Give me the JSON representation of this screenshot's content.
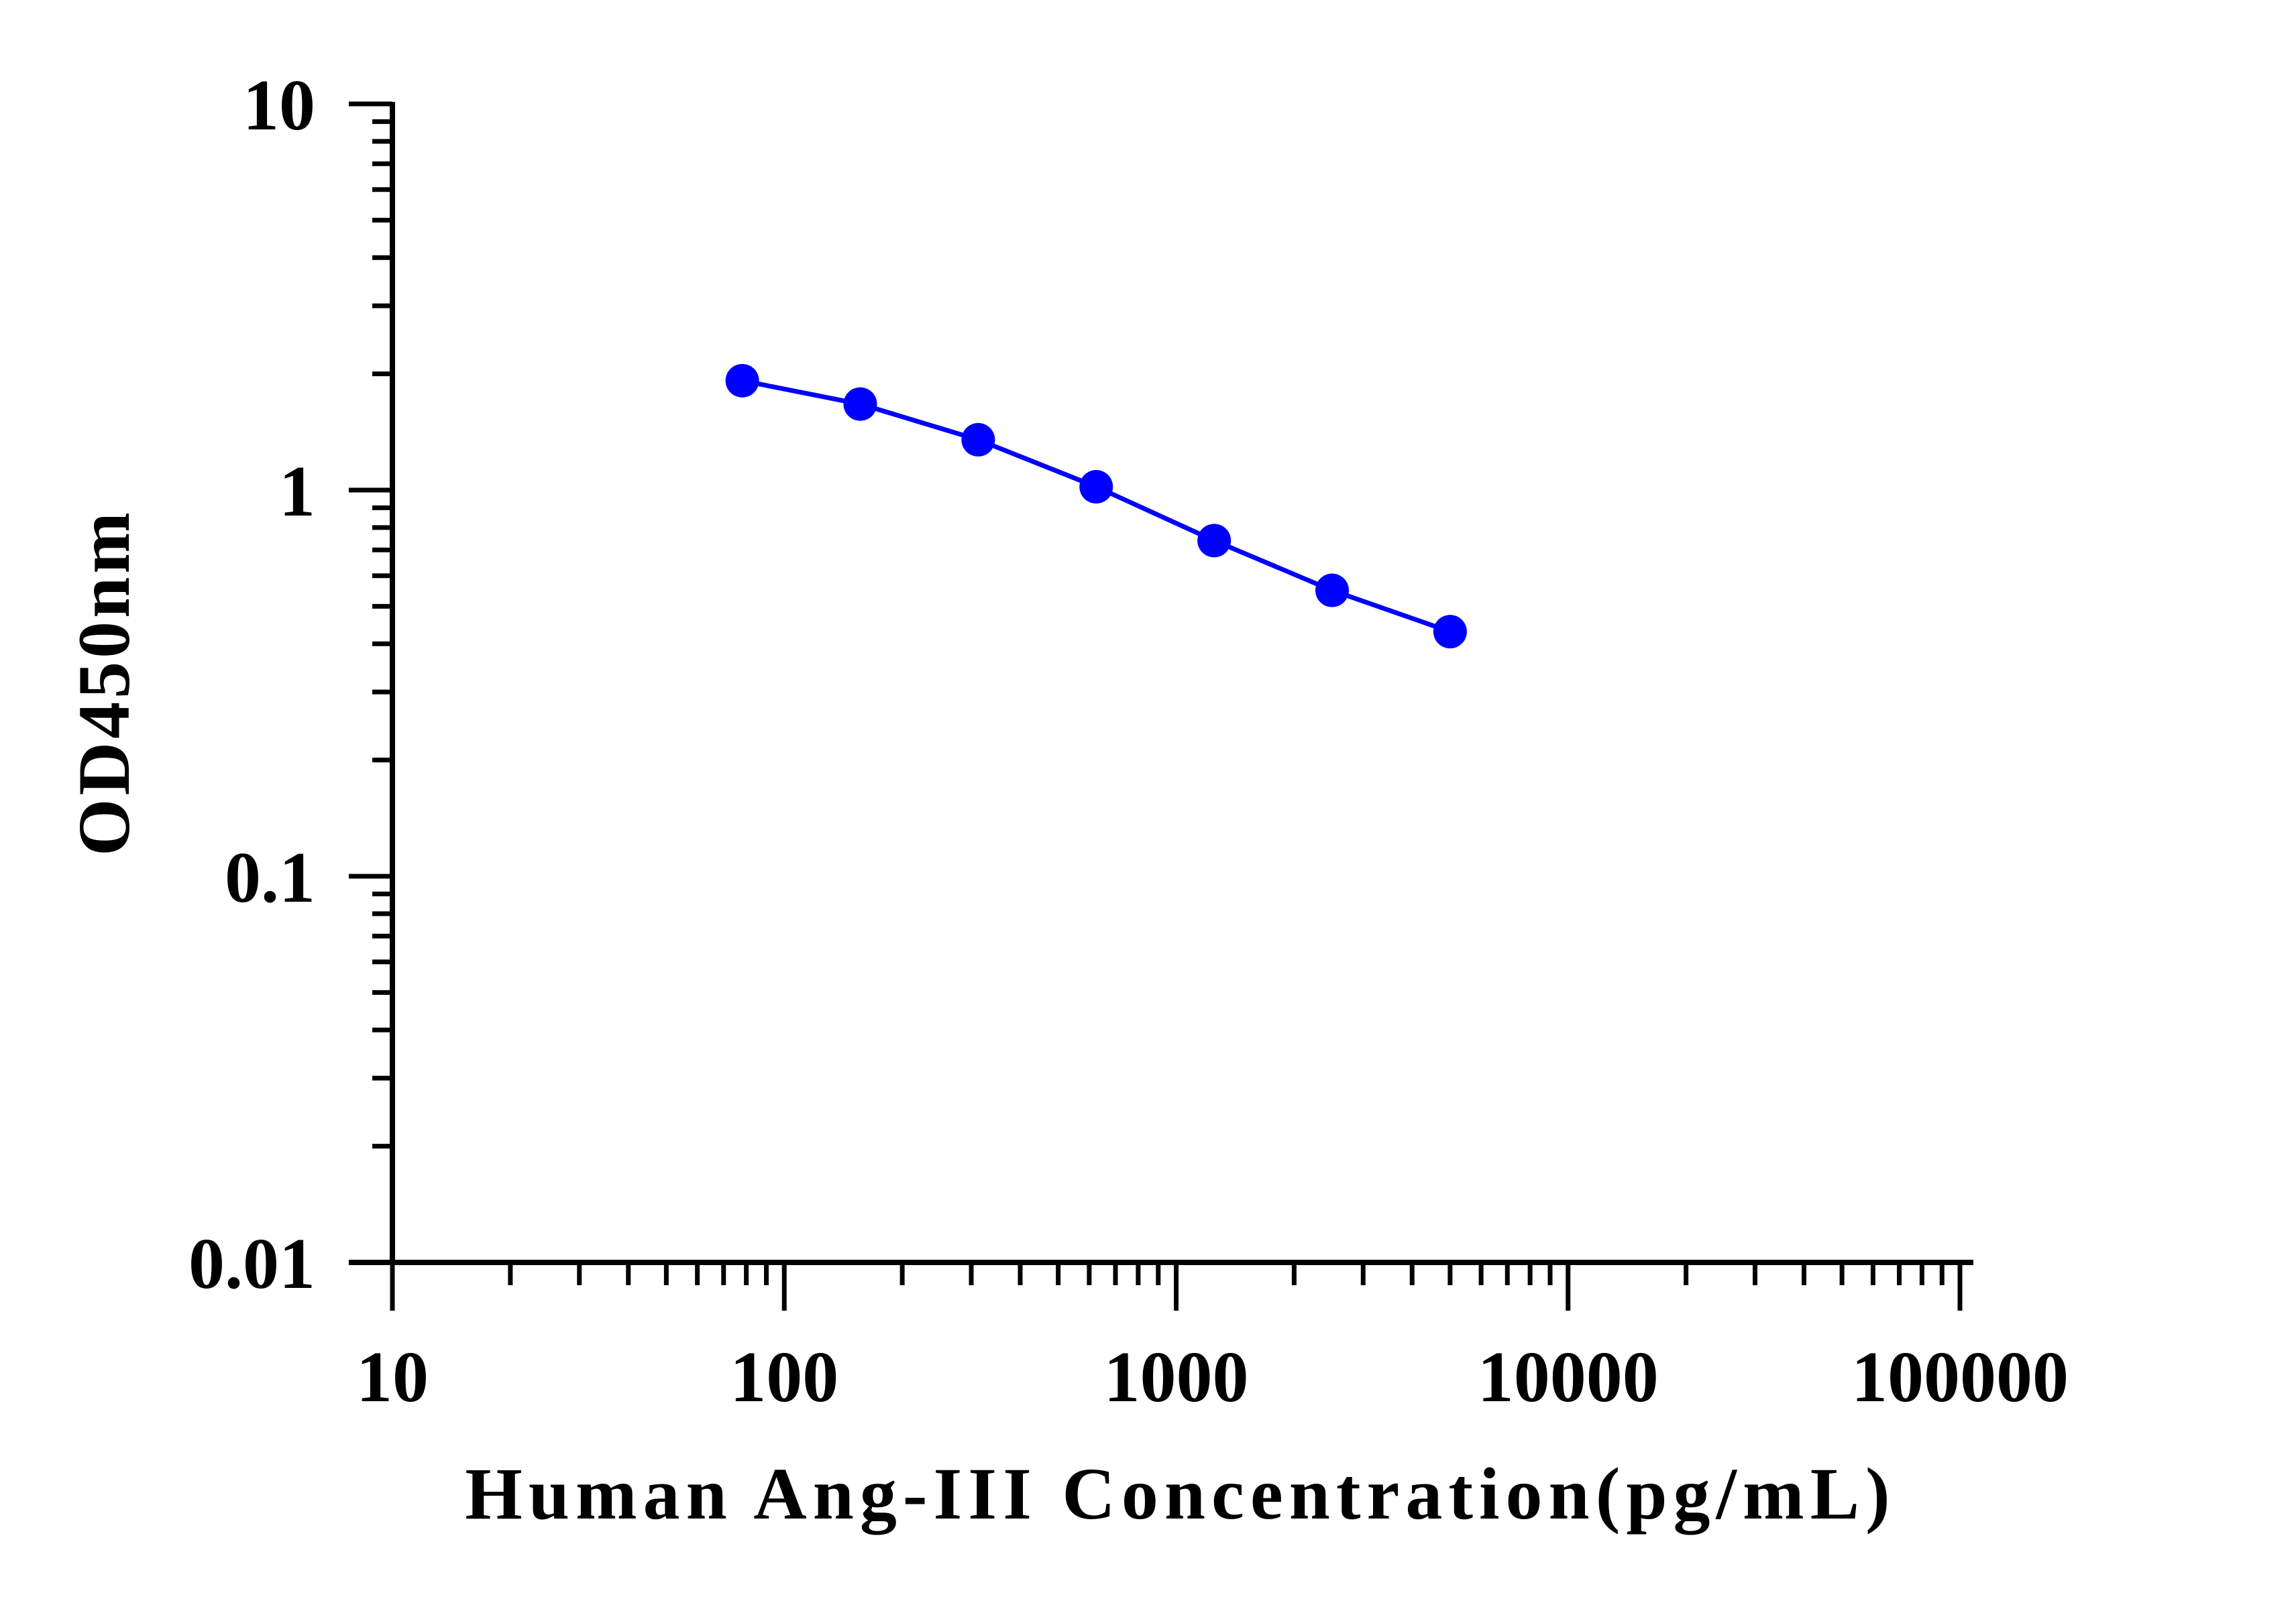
{
  "chart_data": {
    "type": "line",
    "title": "",
    "xlabel": "Human Ang-III Concentration(pg/mL)",
    "ylabel": "OD450nm",
    "x_scale": "log",
    "y_scale": "log",
    "xlim": [
      10,
      100000
    ],
    "ylim": [
      0.01,
      10
    ],
    "x_ticks": [
      10,
      100,
      1000,
      10000,
      100000
    ],
    "x_tick_labels": [
      "10",
      "100",
      "1000",
      "10000",
      "100000"
    ],
    "y_ticks": [
      0.01,
      0.1,
      1,
      10
    ],
    "y_tick_labels": [
      "0.01",
      "0.1",
      "1",
      "10"
    ],
    "grid": false,
    "legend": "none",
    "series": [
      {
        "color": "#0000ff",
        "x": [
          78.125,
          156.25,
          312.5,
          625,
          1250,
          2500,
          5000
        ],
        "y": [
          1.92,
          1.67,
          1.35,
          1.02,
          0.74,
          0.55,
          0.43
        ]
      }
    ]
  }
}
